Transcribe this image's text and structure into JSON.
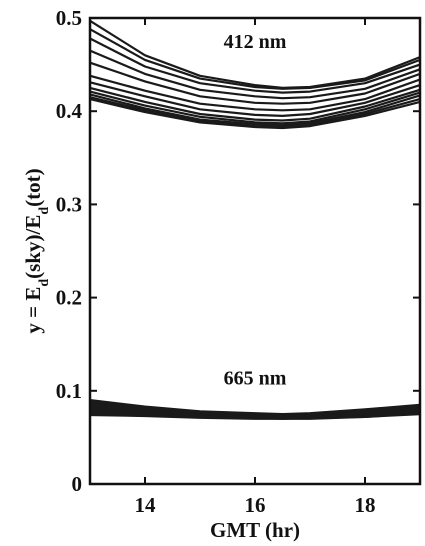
{
  "chart_data": {
    "type": "line",
    "xlabel": "GMT (hr)",
    "ylabel": {
      "prefix": "y = E",
      "sub1": "d",
      "middle": "(sky)/E",
      "sub2": "d",
      "suffix": "(tot)"
    },
    "xlim": [
      13.0,
      19.0
    ],
    "ylim": [
      0,
      0.5
    ],
    "x_ticks": [
      14,
      16,
      18
    ],
    "y_ticks": [
      0,
      0.1,
      0.2,
      0.3,
      0.4,
      0.5
    ],
    "x_tick_labels": [
      "14",
      "16",
      "18"
    ],
    "y_tick_labels": [
      "0",
      "0.1",
      "0.2",
      "0.3",
      "0.4",
      "0.5"
    ],
    "grid": false,
    "annotations": [
      {
        "text": "412 nm",
        "x": 16.0,
        "y": 0.468
      },
      {
        "text": "665 nm",
        "x": 16.0,
        "y": 0.107
      }
    ],
    "x": [
      13.0,
      14.0,
      15.0,
      16.0,
      16.5,
      17.0,
      18.0,
      19.0
    ],
    "series": [
      {
        "group": "412 nm",
        "values": [
          0.497,
          0.46,
          0.438,
          0.428,
          0.425,
          0.426,
          0.435,
          0.458
        ]
      },
      {
        "group": "412 nm",
        "values": [
          0.488,
          0.455,
          0.435,
          0.426,
          0.424,
          0.425,
          0.433,
          0.455
        ]
      },
      {
        "group": "412 nm",
        "values": [
          0.478,
          0.448,
          0.43,
          0.422,
          0.42,
          0.421,
          0.43,
          0.45
        ]
      },
      {
        "group": "412 nm",
        "values": [
          0.465,
          0.44,
          0.423,
          0.416,
          0.414,
          0.415,
          0.424,
          0.445
        ]
      },
      {
        "group": "412 nm",
        "values": [
          0.452,
          0.432,
          0.416,
          0.409,
          0.408,
          0.409,
          0.419,
          0.44
        ]
      },
      {
        "group": "412 nm",
        "values": [
          0.438,
          0.422,
          0.408,
          0.402,
          0.401,
          0.402,
          0.413,
          0.434
        ]
      },
      {
        "group": "412 nm",
        "values": [
          0.431,
          0.416,
          0.402,
          0.396,
          0.395,
          0.397,
          0.409,
          0.428
        ]
      },
      {
        "group": "412 nm",
        "values": [
          0.425,
          0.41,
          0.397,
          0.391,
          0.39,
          0.392,
          0.405,
          0.423
        ]
      },
      {
        "group": "412 nm",
        "values": [
          0.421,
          0.406,
          0.394,
          0.388,
          0.387,
          0.389,
          0.402,
          0.42
        ]
      },
      {
        "group": "412 nm",
        "values": [
          0.418,
          0.403,
          0.391,
          0.386,
          0.385,
          0.387,
          0.399,
          0.417
        ]
      },
      {
        "group": "412 nm",
        "values": [
          0.415,
          0.401,
          0.389,
          0.384,
          0.383,
          0.385,
          0.397,
          0.413
        ]
      },
      {
        "group": "412 nm",
        "values": [
          0.413,
          0.399,
          0.388,
          0.383,
          0.382,
          0.384,
          0.395,
          0.41
        ]
      },
      {
        "group": "665 nm",
        "values": [
          0.09,
          0.083,
          0.078,
          0.076,
          0.075,
          0.076,
          0.08,
          0.085
        ]
      },
      {
        "group": "665 nm",
        "values": [
          0.088,
          0.081,
          0.077,
          0.075,
          0.074,
          0.075,
          0.079,
          0.084
        ]
      },
      {
        "group": "665 nm",
        "values": [
          0.086,
          0.08,
          0.076,
          0.074,
          0.073,
          0.074,
          0.078,
          0.083
        ]
      },
      {
        "group": "665 nm",
        "values": [
          0.084,
          0.079,
          0.075,
          0.073,
          0.073,
          0.073,
          0.077,
          0.082
        ]
      },
      {
        "group": "665 nm",
        "values": [
          0.082,
          0.078,
          0.074,
          0.073,
          0.072,
          0.073,
          0.076,
          0.081
        ]
      },
      {
        "group": "665 nm",
        "values": [
          0.08,
          0.077,
          0.074,
          0.072,
          0.072,
          0.072,
          0.075,
          0.08
        ]
      },
      {
        "group": "665 nm",
        "values": [
          0.078,
          0.076,
          0.073,
          0.072,
          0.071,
          0.072,
          0.074,
          0.079
        ]
      },
      {
        "group": "665 nm",
        "values": [
          0.076,
          0.075,
          0.072,
          0.071,
          0.071,
          0.071,
          0.073,
          0.077
        ]
      },
      {
        "group": "665 nm",
        "values": [
          0.075,
          0.074,
          0.072,
          0.071,
          0.07,
          0.071,
          0.072,
          0.076
        ]
      },
      {
        "group": "665 nm",
        "values": [
          0.074,
          0.073,
          0.071,
          0.07,
          0.07,
          0.07,
          0.072,
          0.075
        ]
      }
    ]
  }
}
